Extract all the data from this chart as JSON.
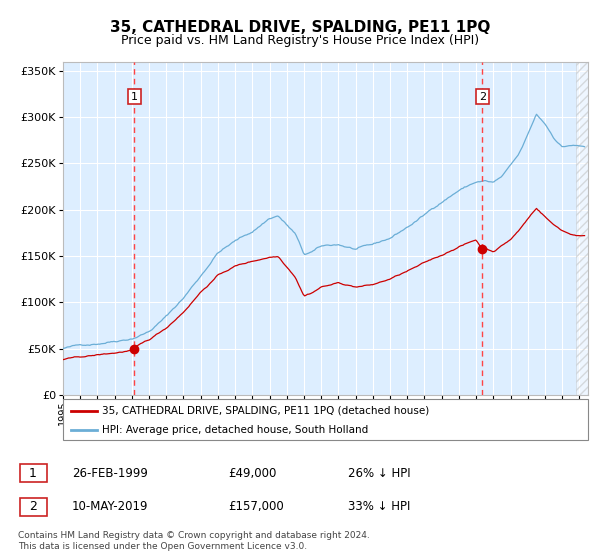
{
  "title": "35, CATHEDRAL DRIVE, SPALDING, PE11 1PQ",
  "subtitle": "Price paid vs. HM Land Registry's House Price Index (HPI)",
  "ytick_values": [
    0,
    50000,
    100000,
    150000,
    200000,
    250000,
    300000,
    350000
  ],
  "ylim": [
    0,
    360000
  ],
  "xlim_start": 1995.0,
  "xlim_end": 2025.5,
  "purchase1_date": 1999.15,
  "purchase1_price": 49000,
  "purchase1_label": "1",
  "purchase2_date": 2019.36,
  "purchase2_price": 157000,
  "purchase2_label": "2",
  "hpi_color": "#6baed6",
  "price_color": "#cc0000",
  "vline_color": "#ff4444",
  "background_color": "#ddeeff",
  "grid_color": "#ffffff",
  "title_fontsize": 11,
  "subtitle_fontsize": 9,
  "legend_entry1": "35, CATHEDRAL DRIVE, SPALDING, PE11 1PQ (detached house)",
  "legend_entry2": "HPI: Average price, detached house, South Holland",
  "footnote1": "Contains HM Land Registry data © Crown copyright and database right 2024.",
  "footnote2": "This data is licensed under the Open Government Licence v3.0.",
  "table_row1_num": "1",
  "table_row1_date": "26-FEB-1999",
  "table_row1_price": "£49,000",
  "table_row1_hpi": "26% ↓ HPI",
  "table_row2_num": "2",
  "table_row2_date": "10-MAY-2019",
  "table_row2_price": "£157,000",
  "table_row2_hpi": "33% ↓ HPI",
  "hpi_anchors_t": [
    1995.0,
    1996.0,
    1997.0,
    1998.0,
    1999.0,
    2000.0,
    2001.0,
    2002.0,
    2003.0,
    2004.0,
    2005.0,
    2006.0,
    2007.0,
    2007.5,
    2008.5,
    2009.0,
    2009.5,
    2010.0,
    2011.0,
    2012.0,
    2013.0,
    2014.0,
    2015.0,
    2016.0,
    2017.0,
    2018.0,
    2019.0,
    2019.5,
    2020.0,
    2020.5,
    2021.0,
    2021.5,
    2022.0,
    2022.5,
    2023.0,
    2023.5,
    2024.0,
    2024.5,
    2025.3
  ],
  "hpi_anchors_v": [
    50000,
    53000,
    56000,
    60000,
    64000,
    72000,
    88000,
    108000,
    132000,
    158000,
    170000,
    180000,
    195000,
    198000,
    178000,
    155000,
    158000,
    163000,
    165000,
    160000,
    163000,
    170000,
    182000,
    195000,
    210000,
    223000,
    232000,
    233000,
    231000,
    237000,
    248000,
    260000,
    280000,
    302000,
    292000,
    278000,
    268000,
    270000,
    268000
  ],
  "price_anchors_t": [
    1995.0,
    1996.0,
    1997.0,
    1998.0,
    1999.0,
    1999.15,
    2000.0,
    2001.0,
    2002.0,
    2003.0,
    2004.0,
    2005.0,
    2006.0,
    2007.0,
    2007.5,
    2008.5,
    2009.0,
    2009.5,
    2010.0,
    2011.0,
    2012.0,
    2013.0,
    2014.0,
    2015.0,
    2016.0,
    2017.0,
    2018.0,
    2019.0,
    2019.36,
    2019.5,
    2020.0,
    2021.0,
    2021.5,
    2022.0,
    2022.5,
    2023.0,
    2023.5,
    2024.0,
    2024.5,
    2025.3
  ],
  "price_anchors_v": [
    38000,
    40000,
    42000,
    44000,
    47000,
    49000,
    57000,
    70000,
    88000,
    110000,
    128000,
    138000,
    143000,
    148000,
    149000,
    128000,
    108000,
    112000,
    118000,
    122000,
    118000,
    120000,
    126000,
    134000,
    142000,
    150000,
    160000,
    167000,
    157000,
    158000,
    155000,
    168000,
    178000,
    190000,
    202000,
    193000,
    184000,
    178000,
    174000,
    172000
  ]
}
